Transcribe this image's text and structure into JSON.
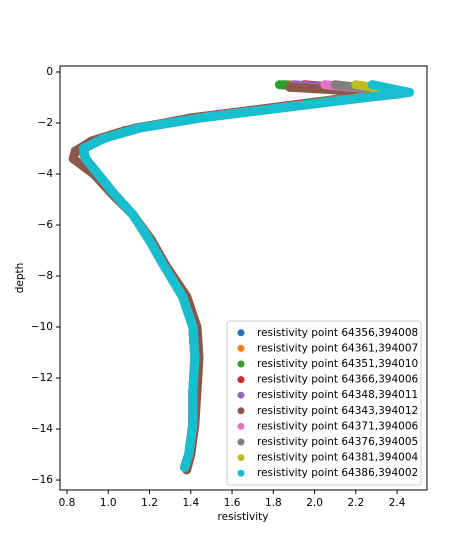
{
  "chart_data": {
    "type": "scatter",
    "xlabel": "resistivity",
    "ylabel": "depth",
    "xlim": [
      0.766,
      2.545
    ],
    "ylim": [
      -16.39,
      0.235
    ],
    "xticks": [
      0.8,
      {
        "value": 1,
        "label": "1.0"
      },
      1.2,
      1.4,
      1.6,
      1.8,
      {
        "value": 2,
        "label": "2.0"
      },
      2.2,
      2.4
    ],
    "yticks": [
      0,
      {
        "value": -2,
        "label": "−2"
      },
      {
        "value": -4,
        "label": "−4"
      },
      {
        "value": -6,
        "label": "−6"
      },
      {
        "value": -8,
        "label": "−8"
      },
      {
        "value": -10,
        "label": "−10"
      },
      {
        "value": -12,
        "label": "−12"
      },
      {
        "value": -14,
        "label": "−14"
      },
      {
        "value": -16,
        "label": "−16"
      }
    ],
    "legend": "lower right",
    "series": [
      {
        "name": "resistivity point 64356,394008",
        "color": "#1f77b4",
        "x": [
          1.85,
          2.38,
          1.9,
          1.42,
          1.14,
          0.98,
          0.88,
          0.89,
          0.95,
          1.03,
          1.12,
          1.2,
          1.27,
          1.36,
          1.41,
          1.42,
          1.41,
          1.41,
          1.39,
          1.37
        ],
        "values": [
          -0.5,
          -0.8,
          -1.3,
          -1.8,
          -2.2,
          -2.6,
          -3.0,
          -3.4,
          -4.0,
          -4.8,
          -5.6,
          -6.6,
          -7.6,
          -8.8,
          -10.0,
          -11.2,
          -12.5,
          -13.8,
          -15.0,
          -15.5
        ]
      },
      {
        "name": "resistivity point 64361,394007",
        "color": "#ff7f0e",
        "x": [
          1.87,
          2.4,
          1.91,
          1.43,
          1.14,
          0.98,
          0.88,
          0.89,
          0.95,
          1.03,
          1.12,
          1.2,
          1.27,
          1.36,
          1.41,
          1.42,
          1.41,
          1.41,
          1.39,
          1.37
        ],
        "values": [
          -0.5,
          -0.8,
          -1.3,
          -1.8,
          -2.2,
          -2.6,
          -3.0,
          -3.4,
          -4.0,
          -4.8,
          -5.6,
          -6.6,
          -7.6,
          -8.8,
          -10.0,
          -11.2,
          -12.5,
          -13.8,
          -15.0,
          -15.5
        ]
      },
      {
        "name": "resistivity point 64351,394010",
        "color": "#2ca02c",
        "x": [
          1.83,
          2.36,
          1.89,
          1.42,
          1.13,
          0.97,
          0.87,
          0.89,
          0.95,
          1.03,
          1.12,
          1.2,
          1.27,
          1.36,
          1.41,
          1.42,
          1.41,
          1.41,
          1.39,
          1.37
        ],
        "values": [
          -0.5,
          -0.8,
          -1.3,
          -1.8,
          -2.2,
          -2.6,
          -3.0,
          -3.4,
          -4.0,
          -4.8,
          -5.6,
          -6.6,
          -7.6,
          -8.8,
          -10.0,
          -11.2,
          -12.5,
          -13.8,
          -15.0,
          -15.5
        ]
      },
      {
        "name": "resistivity point 64366,394006",
        "color": "#d62728",
        "x": [
          1.95,
          2.4,
          1.92,
          1.43,
          1.14,
          0.98,
          0.88,
          0.89,
          0.95,
          1.03,
          1.12,
          1.2,
          1.27,
          1.36,
          1.41,
          1.42,
          1.41,
          1.41,
          1.39,
          1.37
        ],
        "values": [
          -0.5,
          -0.8,
          -1.3,
          -1.8,
          -2.2,
          -2.6,
          -3.0,
          -3.4,
          -4.0,
          -4.8,
          -5.6,
          -6.6,
          -7.6,
          -8.8,
          -10.0,
          -11.2,
          -12.5,
          -13.8,
          -15.0,
          -15.5
        ]
      },
      {
        "name": "resistivity point 64348,394011",
        "color": "#9467bd",
        "x": [
          1.9,
          2.38,
          1.91,
          1.42,
          1.14,
          0.98,
          0.88,
          0.89,
          0.95,
          1.03,
          1.12,
          1.2,
          1.27,
          1.36,
          1.41,
          1.42,
          1.41,
          1.41,
          1.39,
          1.37
        ],
        "values": [
          -0.5,
          -0.8,
          -1.3,
          -1.8,
          -2.2,
          -2.6,
          -3.0,
          -3.4,
          -4.0,
          -4.8,
          -5.6,
          -6.6,
          -7.6,
          -8.8,
          -10.0,
          -11.2,
          -12.5,
          -13.8,
          -15.0,
          -15.5
        ]
      },
      {
        "name": "resistivity point 64343,394012",
        "color": "#8c564b",
        "x": [
          1.88,
          2.42,
          1.9,
          1.4,
          1.08,
          0.92,
          0.84,
          0.83,
          0.93,
          1.02,
          1.12,
          1.21,
          1.28,
          1.38,
          1.43,
          1.44,
          1.43,
          1.42,
          1.4,
          1.38
        ],
        "values": [
          -0.6,
          -0.85,
          -1.3,
          -1.8,
          -2.3,
          -2.7,
          -3.1,
          -3.4,
          -4.0,
          -4.8,
          -5.6,
          -6.6,
          -7.6,
          -8.8,
          -10.0,
          -11.2,
          -12.5,
          -13.8,
          -15.0,
          -15.6
        ]
      },
      {
        "name": "resistivity point 64371,394006",
        "color": "#e377c2",
        "x": [
          2.05,
          2.44,
          1.94,
          1.44,
          1.15,
          0.98,
          0.88,
          0.89,
          0.95,
          1.03,
          1.12,
          1.2,
          1.27,
          1.36,
          1.41,
          1.42,
          1.41,
          1.41,
          1.39,
          1.37
        ],
        "values": [
          -0.5,
          -0.8,
          -1.3,
          -1.8,
          -2.2,
          -2.6,
          -3.0,
          -3.4,
          -4.0,
          -4.8,
          -5.6,
          -6.6,
          -7.6,
          -8.8,
          -10.0,
          -11.2,
          -12.5,
          -13.8,
          -15.0,
          -15.5
        ]
      },
      {
        "name": "resistivity point 64376,394005",
        "color": "#7f7f7f",
        "x": [
          2.1,
          2.42,
          1.94,
          1.44,
          1.15,
          0.98,
          0.88,
          0.89,
          0.95,
          1.03,
          1.12,
          1.2,
          1.27,
          1.36,
          1.41,
          1.42,
          1.41,
          1.41,
          1.39,
          1.37
        ],
        "values": [
          -0.5,
          -0.8,
          -1.3,
          -1.8,
          -2.2,
          -2.6,
          -3.0,
          -3.4,
          -4.0,
          -4.8,
          -5.6,
          -6.6,
          -7.6,
          -8.8,
          -10.0,
          -11.2,
          -12.5,
          -13.8,
          -15.0,
          -15.5
        ]
      },
      {
        "name": "resistivity point 64381,394004",
        "color": "#bcbd22",
        "x": [
          2.2,
          2.44,
          1.95,
          1.45,
          1.15,
          0.98,
          0.88,
          0.89,
          0.95,
          1.03,
          1.12,
          1.2,
          1.27,
          1.36,
          1.41,
          1.42,
          1.41,
          1.41,
          1.39,
          1.37
        ],
        "values": [
          -0.5,
          -0.8,
          -1.3,
          -1.8,
          -2.2,
          -2.6,
          -3.0,
          -3.4,
          -4.0,
          -4.8,
          -5.6,
          -6.6,
          -7.6,
          -8.8,
          -10.0,
          -11.2,
          -12.5,
          -13.8,
          -15.0,
          -15.5
        ]
      },
      {
        "name": "resistivity point 64386,394002",
        "color": "#17becf",
        "x": [
          2.28,
          2.46,
          1.95,
          1.45,
          1.15,
          0.98,
          0.88,
          0.89,
          0.95,
          1.03,
          1.12,
          1.2,
          1.27,
          1.36,
          1.41,
          1.42,
          1.41,
          1.41,
          1.39,
          1.37
        ],
        "values": [
          -0.5,
          -0.8,
          -1.3,
          -1.8,
          -2.2,
          -2.6,
          -3.0,
          -3.4,
          -4.0,
          -4.8,
          -5.6,
          -6.6,
          -7.6,
          -8.8,
          -10.0,
          -11.2,
          -12.5,
          -13.8,
          -15.0,
          -15.5
        ]
      }
    ]
  }
}
